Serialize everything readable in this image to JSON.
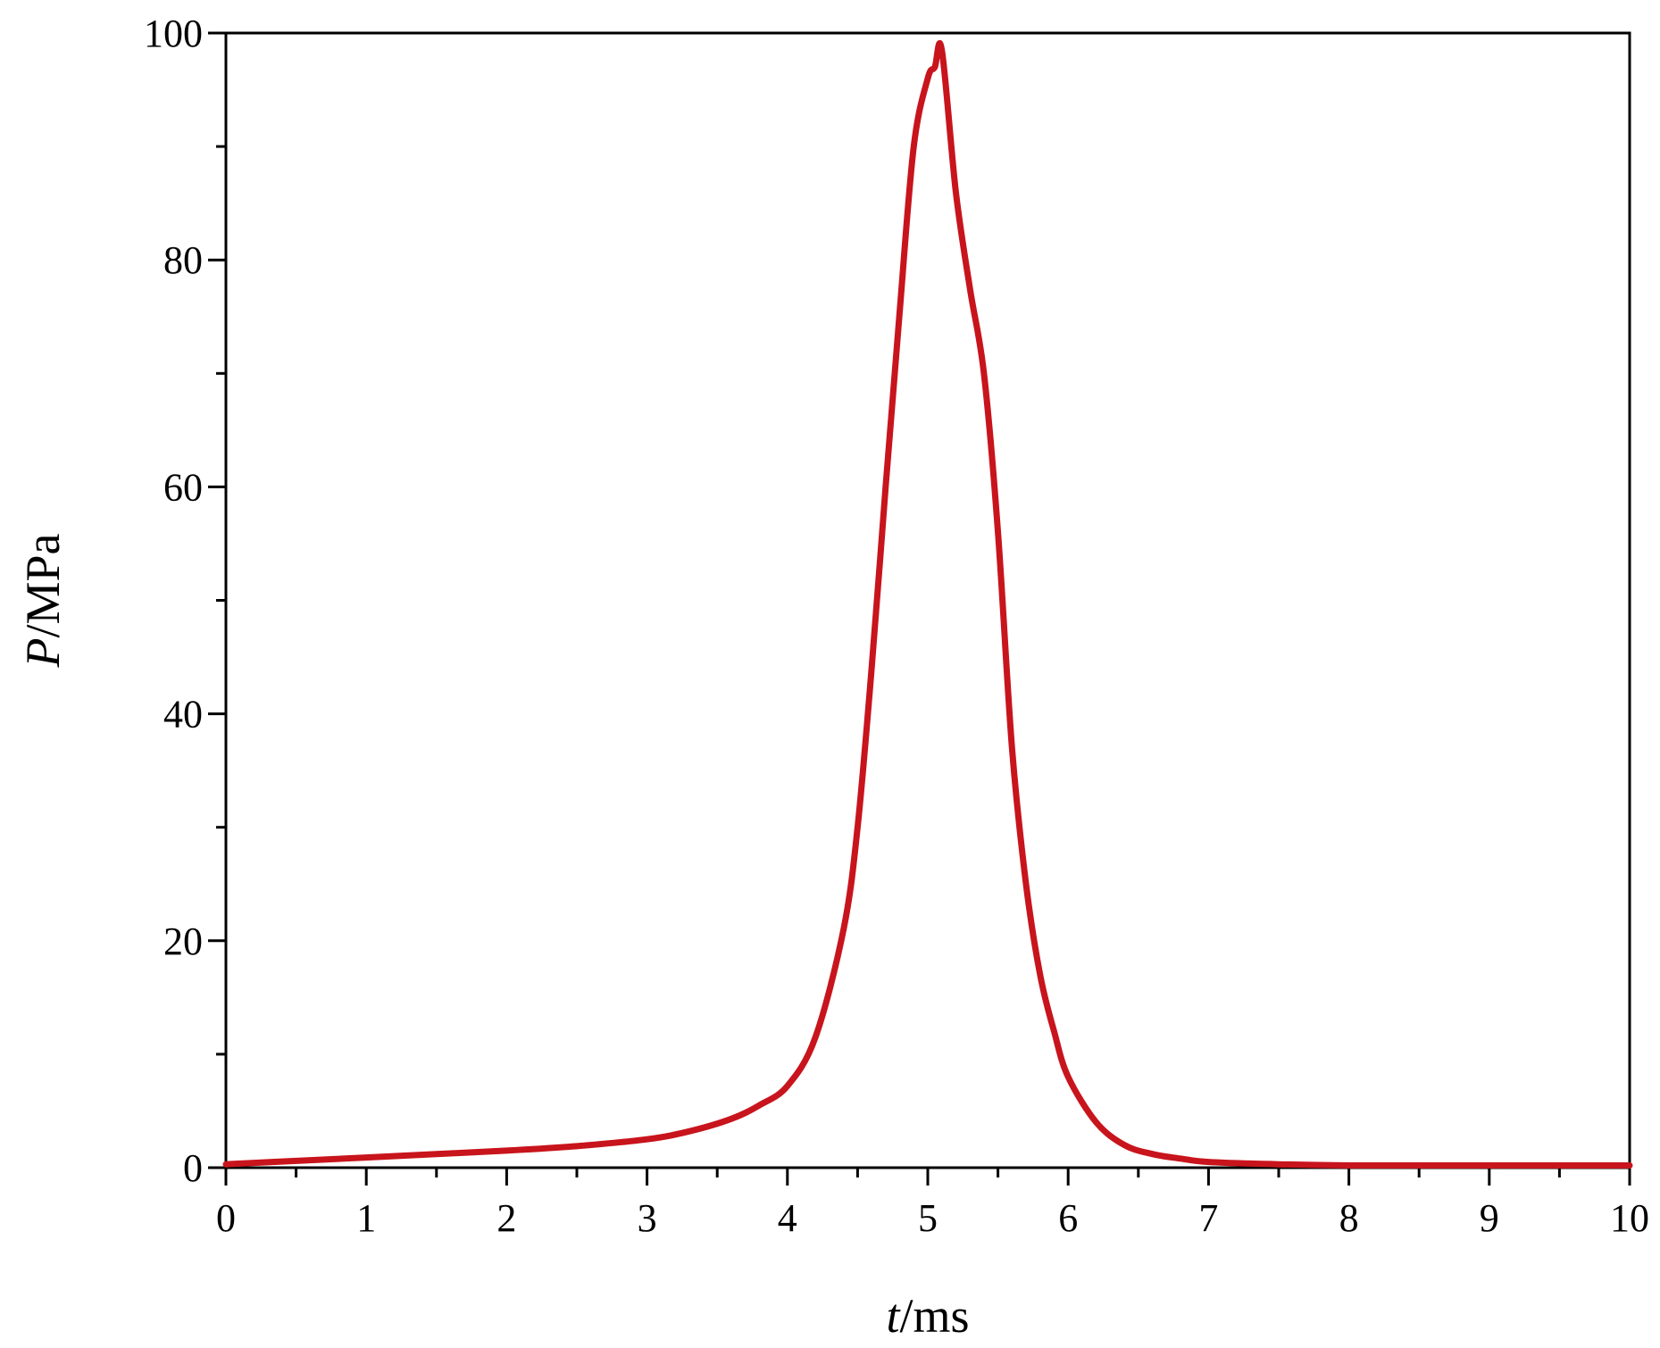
{
  "chart_data": {
    "type": "line",
    "title": "",
    "xlabel": {
      "var": "t",
      "unit": "/ms"
    },
    "ylabel": {
      "var": "P",
      "unit": "/MPa"
    },
    "xlim": [
      0,
      10
    ],
    "ylim": [
      0,
      100
    ],
    "x_ticks": [
      0,
      1,
      2,
      3,
      4,
      5,
      6,
      7,
      8,
      9,
      10
    ],
    "x_tick_labels": [
      "0",
      "1",
      "2",
      "3",
      "4",
      "5",
      "6",
      "7",
      "8",
      "9",
      "10"
    ],
    "x_minor_ticks": [
      0.5,
      1.5,
      2.5,
      3.5,
      4.5,
      5.5,
      6.5,
      7.5,
      8.5,
      9.5
    ],
    "y_ticks": [
      0,
      20,
      40,
      60,
      80,
      100
    ],
    "y_tick_labels": [
      "0",
      "20",
      "40",
      "60",
      "80",
      "100"
    ],
    "y_minor_ticks": [
      10,
      30,
      50,
      70,
      90
    ],
    "grid": false,
    "series": [
      {
        "color": "#c8141c",
        "x": [
          0,
          0.5,
          1,
          1.5,
          2,
          2.5,
          3,
          3.3,
          3.6,
          3.8,
          4.0,
          4.2,
          4.4,
          4.5,
          4.6,
          4.7,
          4.8,
          4.9,
          5.0,
          5.05,
          5.1,
          5.2,
          5.3,
          5.4,
          5.5,
          5.6,
          5.7,
          5.8,
          5.9,
          6.0,
          6.2,
          6.4,
          6.6,
          6.8,
          7.0,
          7.5,
          8.0,
          9.0,
          10.0
        ],
        "y": [
          0.3,
          0.6,
          0.9,
          1.2,
          1.5,
          1.9,
          2.5,
          3.2,
          4.3,
          5.5,
          7.2,
          11.5,
          21.0,
          30.0,
          44.0,
          60.0,
          75.5,
          90.0,
          96.0,
          97.0,
          98.5,
          86.0,
          77.5,
          70.0,
          56.0,
          37.0,
          25.0,
          17.0,
          12.0,
          8.0,
          4.0,
          2.0,
          1.2,
          0.8,
          0.5,
          0.3,
          0.2,
          0.2,
          0.2
        ]
      }
    ]
  }
}
